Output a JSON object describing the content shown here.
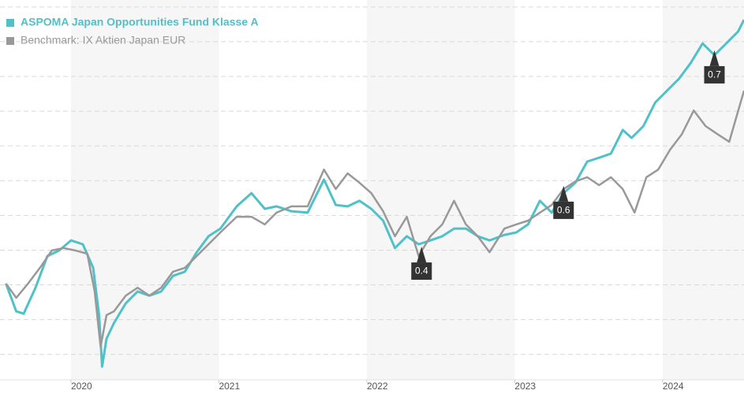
{
  "chart_data": {
    "type": "line",
    "xlim": [
      2019.52,
      2024.55
    ],
    "xticks": [
      2020,
      2021,
      2022,
      2023,
      2024
    ],
    "ylim": [
      2,
      112
    ],
    "yticks": [
      10,
      20,
      30,
      40,
      50,
      60,
      70,
      80,
      90,
      100,
      110
    ],
    "grid": true,
    "legend": "top-left",
    "series": [
      {
        "name": "ASPOMA Japan Opportunities Fund Klasse A",
        "color": "#4fc1c8",
        "x": [
          2019.56,
          2019.63,
          2019.68,
          2019.76,
          2019.84,
          2019.92,
          2020.0,
          2020.08,
          2020.15,
          2020.19,
          2020.21,
          2020.24,
          2020.29,
          2020.37,
          2020.45,
          2020.53,
          2020.61,
          2020.69,
          2020.77,
          2020.85,
          2020.93,
          2021.01,
          2021.12,
          2021.22,
          2021.31,
          2021.39,
          2021.49,
          2021.6,
          2021.71,
          2021.79,
          2021.87,
          2021.95,
          2022.03,
          2022.11,
          2022.19,
          2022.27,
          2022.35,
          2022.43,
          2022.51,
          2022.59,
          2022.67,
          2022.75,
          2022.83,
          2022.93,
          2023.01,
          2023.09,
          2023.17,
          2023.25,
          2023.33,
          2023.41,
          2023.49,
          2023.57,
          2023.65,
          2023.73,
          2023.79,
          2023.87,
          2023.95,
          2024.03,
          2024.11,
          2024.19,
          2024.27,
          2024.35,
          2024.43,
          2024.51,
          2024.55
        ],
        "values": [
          30.4,
          22.4,
          21.7,
          29.2,
          38.3,
          39.9,
          42.8,
          41.7,
          34.9,
          21.3,
          6.5,
          14.5,
          19.0,
          24.7,
          28.1,
          26.9,
          28.1,
          32.6,
          33.8,
          39.4,
          44.0,
          46.2,
          52.6,
          56.4,
          51.9,
          52.6,
          51.2,
          50.8,
          60.3,
          53.0,
          52.6,
          54.2,
          51.9,
          48.5,
          40.6,
          44.0,
          41.7,
          42.8,
          44.0,
          46.2,
          46.2,
          44.0,
          42.8,
          44.4,
          45.1,
          47.4,
          54.2,
          50.8,
          56.4,
          59.4,
          65.5,
          66.6,
          67.8,
          74.6,
          72.3,
          75.7,
          82.5,
          85.9,
          89.3,
          93.9,
          99.5,
          96.1,
          99.5,
          102.9,
          106.3
        ]
      },
      {
        "name": "Benchmark: IX Aktien Japan EUR",
        "color": "#999999",
        "x": [
          2019.56,
          2019.63,
          2019.71,
          2019.79,
          2019.87,
          2019.95,
          2020.03,
          2020.11,
          2020.16,
          2020.2,
          2020.24,
          2020.29,
          2020.37,
          2020.45,
          2020.53,
          2020.61,
          2020.69,
          2020.77,
          2020.85,
          2020.93,
          2021.01,
          2021.12,
          2021.22,
          2021.31,
          2021.39,
          2021.49,
          2021.6,
          2021.71,
          2021.79,
          2021.87,
          2021.95,
          2022.03,
          2022.11,
          2022.19,
          2022.27,
          2022.35,
          2022.43,
          2022.51,
          2022.59,
          2022.67,
          2022.75,
          2022.83,
          2022.93,
          2023.01,
          2023.09,
          2023.17,
          2023.25,
          2023.33,
          2023.41,
          2023.49,
          2023.57,
          2023.65,
          2023.73,
          2023.81,
          2023.89,
          2023.97,
          2024.05,
          2024.13,
          2024.21,
          2024.29,
          2024.37,
          2024.45,
          2024.55
        ],
        "values": [
          30.4,
          26.3,
          30.4,
          34.9,
          39.9,
          40.6,
          39.9,
          39.0,
          28.1,
          12.2,
          21.3,
          22.4,
          26.9,
          29.2,
          26.9,
          29.2,
          33.8,
          34.9,
          38.3,
          41.7,
          45.1,
          49.6,
          49.6,
          47.4,
          50.8,
          52.6,
          52.6,
          63.2,
          57.6,
          62.1,
          59.4,
          56.4,
          51.2,
          44.0,
          49.6,
          38.3,
          44.0,
          47.4,
          54.2,
          47.4,
          44.0,
          39.4,
          46.2,
          47.4,
          48.5,
          50.8,
          53.0,
          57.6,
          59.8,
          61.0,
          58.7,
          61.0,
          57.6,
          50.8,
          61.0,
          63.2,
          68.9,
          73.4,
          80.2,
          75.7,
          73.4,
          71.2,
          85.9
        ]
      }
    ],
    "annotations": [
      {
        "x": 2022.37,
        "y": 41.0,
        "text": "0.4"
      },
      {
        "x": 2023.33,
        "y": 58.5,
        "text": "0.6"
      },
      {
        "x": 2024.35,
        "y": 97.5,
        "text": "0.7"
      }
    ]
  }
}
